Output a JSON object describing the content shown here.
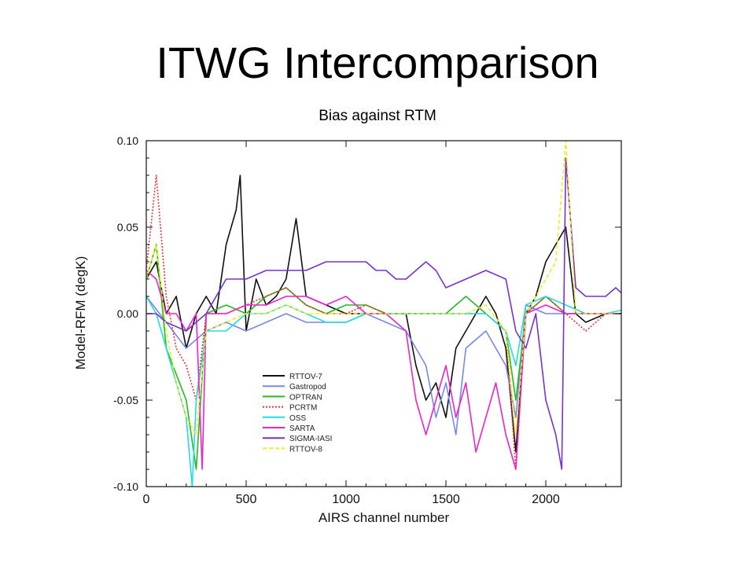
{
  "slide": {
    "title": "ITWG Intercomparison",
    "subtitle": "Bias against RTM"
  },
  "chart_data": {
    "type": "line",
    "xlabel": "AIRS channel number",
    "ylabel": "Model-RFM (degK)",
    "xlim": [
      0,
      2378
    ],
    "ylim": [
      -0.1,
      0.1
    ],
    "x_ticks": [
      0,
      500,
      1000,
      1500,
      2000
    ],
    "x_tick_labels": [
      "0",
      "500",
      "1000",
      "1500",
      "2000"
    ],
    "y_ticks": [
      0.1,
      0.05,
      0.0,
      -0.05,
      -0.1
    ],
    "y_tick_labels": [
      "0.10",
      "0.05",
      "0.00",
      "-0.05",
      "-0.10"
    ],
    "legend_position": "lower-left",
    "series": [
      {
        "name": "RTTOV-7",
        "color": "#111111",
        "dash": "solid",
        "points": [
          [
            0,
            0.02
          ],
          [
            50,
            0.03
          ],
          [
            100,
            0.0
          ],
          [
            150,
            0.01
          ],
          [
            200,
            -0.02
          ],
          [
            250,
            0.0
          ],
          [
            300,
            0.01
          ],
          [
            350,
            0.0
          ],
          [
            400,
            0.04
          ],
          [
            450,
            0.06
          ],
          [
            470,
            0.08
          ],
          [
            500,
            -0.01
          ],
          [
            550,
            0.02
          ],
          [
            600,
            0.005
          ],
          [
            650,
            0.01
          ],
          [
            700,
            0.02
          ],
          [
            750,
            0.055
          ],
          [
            800,
            0.01
          ],
          [
            900,
            0.005
          ],
          [
            1000,
            0.0
          ],
          [
            1100,
            0.0
          ],
          [
            1200,
            0.0
          ],
          [
            1300,
            0.0
          ],
          [
            1350,
            -0.03
          ],
          [
            1400,
            -0.05
          ],
          [
            1450,
            -0.04
          ],
          [
            1500,
            -0.06
          ],
          [
            1550,
            -0.02
          ],
          [
            1600,
            -0.01
          ],
          [
            1700,
            0.01
          ],
          [
            1750,
            0.0
          ],
          [
            1800,
            -0.02
          ],
          [
            1850,
            -0.08
          ],
          [
            1900,
            0.0
          ],
          [
            1950,
            0.01
          ],
          [
            2000,
            0.03
          ],
          [
            2050,
            0.04
          ],
          [
            2100,
            0.05
          ],
          [
            2150,
            0.0
          ],
          [
            2200,
            -0.005
          ],
          [
            2300,
            0.0
          ],
          [
            2378,
            0.0
          ]
        ]
      },
      {
        "name": "Gastropod",
        "color": "#7788ee",
        "dash": "solid",
        "points": [
          [
            0,
            0.01
          ],
          [
            100,
            -0.005
          ],
          [
            200,
            -0.02
          ],
          [
            300,
            -0.01
          ],
          [
            400,
            -0.005
          ],
          [
            500,
            -0.01
          ],
          [
            600,
            -0.005
          ],
          [
            700,
            0.0
          ],
          [
            800,
            -0.005
          ],
          [
            900,
            -0.005
          ],
          [
            1000,
            -0.005
          ],
          [
            1100,
            0.0
          ],
          [
            1200,
            -0.005
          ],
          [
            1300,
            -0.01
          ],
          [
            1400,
            -0.03
          ],
          [
            1450,
            -0.06
          ],
          [
            1500,
            -0.04
          ],
          [
            1550,
            -0.07
          ],
          [
            1600,
            -0.02
          ],
          [
            1700,
            -0.01
          ],
          [
            1800,
            -0.03
          ],
          [
            1850,
            -0.06
          ],
          [
            1900,
            0.005
          ],
          [
            2000,
            0.0
          ],
          [
            2100,
            0.0
          ],
          [
            2200,
            0.0
          ],
          [
            2300,
            0.0
          ],
          [
            2378,
            0.0
          ]
        ]
      },
      {
        "name": "OPTRAN",
        "color": "#22bb22",
        "dash": "solid",
        "points": [
          [
            0,
            0.02
          ],
          [
            50,
            0.04
          ],
          [
            100,
            -0.02
          ],
          [
            200,
            -0.05
          ],
          [
            250,
            -0.09
          ],
          [
            300,
            0.0
          ],
          [
            400,
            0.005
          ],
          [
            500,
            0.0
          ],
          [
            600,
            0.01
          ],
          [
            700,
            0.015
          ],
          [
            800,
            0.005
          ],
          [
            900,
            0.0
          ],
          [
            1000,
            0.005
          ],
          [
            1100,
            0.005
          ],
          [
            1200,
            0.0
          ],
          [
            1300,
            0.0
          ],
          [
            1400,
            0.0
          ],
          [
            1500,
            0.0
          ],
          [
            1600,
            0.01
          ],
          [
            1700,
            0.0
          ],
          [
            1800,
            -0.01
          ],
          [
            1850,
            -0.05
          ],
          [
            1900,
            0.0
          ],
          [
            2000,
            0.01
          ],
          [
            2100,
            0.0
          ],
          [
            2200,
            0.0
          ],
          [
            2300,
            0.0
          ],
          [
            2378,
            0.0
          ]
        ]
      },
      {
        "name": "PCRTM",
        "color": "#ee3333",
        "dash": "dotted",
        "points": [
          [
            0,
            0.025
          ],
          [
            50,
            0.08
          ],
          [
            100,
            0.01
          ],
          [
            150,
            -0.02
          ],
          [
            200,
            -0.03
          ],
          [
            250,
            -0.05
          ],
          [
            300,
            0.0
          ],
          [
            400,
            0.0
          ],
          [
            500,
            0.005
          ],
          [
            600,
            0.01
          ],
          [
            700,
            0.015
          ],
          [
            800,
            0.005
          ],
          [
            900,
            0.0
          ],
          [
            1000,
            0.0
          ],
          [
            1100,
            0.005
          ],
          [
            1200,
            0.0
          ],
          [
            1300,
            0.0
          ],
          [
            1400,
            0.0
          ],
          [
            1500,
            0.0
          ],
          [
            1600,
            0.0
          ],
          [
            1700,
            0.0
          ],
          [
            1800,
            -0.01
          ],
          [
            1850,
            -0.09
          ],
          [
            1900,
            0.0
          ],
          [
            2000,
            0.01
          ],
          [
            2100,
            0.0
          ],
          [
            2200,
            -0.01
          ],
          [
            2300,
            0.0
          ],
          [
            2378,
            0.0
          ]
        ]
      },
      {
        "name": "OSS",
        "color": "#22dddd",
        "dash": "solid",
        "points": [
          [
            0,
            0.01
          ],
          [
            50,
            0.0
          ],
          [
            100,
            -0.02
          ],
          [
            150,
            -0.04
          ],
          [
            200,
            -0.06
          ],
          [
            230,
            -0.1
          ],
          [
            250,
            -0.05
          ],
          [
            300,
            -0.01
          ],
          [
            400,
            -0.01
          ],
          [
            500,
            0.0
          ],
          [
            600,
            0.0
          ],
          [
            700,
            0.005
          ],
          [
            800,
            0.0
          ],
          [
            900,
            -0.005
          ],
          [
            1000,
            -0.005
          ],
          [
            1100,
            0.0
          ],
          [
            1200,
            0.0
          ],
          [
            1300,
            0.0
          ],
          [
            1400,
            0.0
          ],
          [
            1500,
            0.0
          ],
          [
            1600,
            0.0
          ],
          [
            1700,
            0.0
          ],
          [
            1800,
            -0.01
          ],
          [
            1850,
            -0.03
          ],
          [
            1900,
            0.005
          ],
          [
            2000,
            0.01
          ],
          [
            2100,
            0.005
          ],
          [
            2200,
            0.0
          ],
          [
            2300,
            0.0
          ],
          [
            2378,
            0.002
          ]
        ]
      },
      {
        "name": "SARTA",
        "color": "#ee22cc",
        "dash": "solid",
        "points": [
          [
            0,
            0.025
          ],
          [
            50,
            0.02
          ],
          [
            100,
            0.0
          ],
          [
            150,
            0.0
          ],
          [
            200,
            -0.01
          ],
          [
            250,
            0.0
          ],
          [
            280,
            -0.09
          ],
          [
            300,
            0.0
          ],
          [
            400,
            0.0
          ],
          [
            500,
            0.005
          ],
          [
            600,
            0.005
          ],
          [
            700,
            0.01
          ],
          [
            800,
            0.01
          ],
          [
            900,
            0.005
          ],
          [
            1000,
            0.01
          ],
          [
            1100,
            0.0
          ],
          [
            1200,
            0.0
          ],
          [
            1300,
            -0.01
          ],
          [
            1350,
            -0.05
          ],
          [
            1400,
            -0.07
          ],
          [
            1450,
            -0.05
          ],
          [
            1500,
            -0.03
          ],
          [
            1550,
            -0.06
          ],
          [
            1600,
            -0.04
          ],
          [
            1650,
            -0.08
          ],
          [
            1700,
            -0.06
          ],
          [
            1750,
            -0.04
          ],
          [
            1800,
            -0.07
          ],
          [
            1850,
            -0.09
          ],
          [
            1900,
            0.0
          ],
          [
            2000,
            0.005
          ],
          [
            2100,
            0.0
          ],
          [
            2200,
            0.0
          ],
          [
            2300,
            0.0
          ],
          [
            2378,
            0.0
          ]
        ]
      },
      {
        "name": "SIGMA-IASI",
        "color": "#7733cc",
        "dash": "solid",
        "points": [
          [
            0,
            0.0
          ],
          [
            50,
            0.0
          ],
          [
            100,
            -0.005
          ],
          [
            200,
            -0.01
          ],
          [
            300,
            0.0
          ],
          [
            400,
            0.02
          ],
          [
            500,
            0.02
          ],
          [
            600,
            0.025
          ],
          [
            700,
            0.025
          ],
          [
            800,
            0.025
          ],
          [
            900,
            0.03
          ],
          [
            1000,
            0.03
          ],
          [
            1100,
            0.03
          ],
          [
            1150,
            0.025
          ],
          [
            1200,
            0.025
          ],
          [
            1250,
            0.02
          ],
          [
            1300,
            0.02
          ],
          [
            1350,
            0.025
          ],
          [
            1400,
            0.03
          ],
          [
            1450,
            0.025
          ],
          [
            1500,
            0.015
          ],
          [
            1600,
            0.02
          ],
          [
            1700,
            0.025
          ],
          [
            1800,
            0.02
          ],
          [
            1850,
            -0.01
          ],
          [
            1900,
            -0.02
          ],
          [
            1950,
            0.0
          ],
          [
            2000,
            -0.05
          ],
          [
            2050,
            -0.07
          ],
          [
            2080,
            -0.09
          ],
          [
            2100,
            0.09
          ],
          [
            2150,
            0.015
          ],
          [
            2200,
            0.01
          ],
          [
            2250,
            0.01
          ],
          [
            2300,
            0.01
          ],
          [
            2350,
            0.015
          ],
          [
            2378,
            0.012
          ]
        ]
      },
      {
        "name": "RTTOV-8",
        "color": "#eeee22",
        "dash": "dashed",
        "points": [
          [
            0,
            0.02
          ],
          [
            50,
            0.04
          ],
          [
            100,
            -0.01
          ],
          [
            150,
            -0.04
          ],
          [
            200,
            -0.06
          ],
          [
            250,
            -0.07
          ],
          [
            300,
            -0.01
          ],
          [
            400,
            -0.005
          ],
          [
            500,
            0.0
          ],
          [
            600,
            0.0
          ],
          [
            700,
            0.005
          ],
          [
            800,
            0.0
          ],
          [
            900,
            0.0
          ],
          [
            1000,
            0.0
          ],
          [
            1100,
            0.0
          ],
          [
            1200,
            0.0
          ],
          [
            1300,
            0.0
          ],
          [
            1400,
            0.0
          ],
          [
            1500,
            0.0
          ],
          [
            1600,
            0.0
          ],
          [
            1700,
            0.005
          ],
          [
            1800,
            -0.01
          ],
          [
            1850,
            -0.07
          ],
          [
            1900,
            0.0
          ],
          [
            2000,
            0.02
          ],
          [
            2050,
            0.03
          ],
          [
            2100,
            0.1
          ],
          [
            2150,
            0.0
          ],
          [
            2200,
            0.0
          ],
          [
            2300,
            0.0
          ],
          [
            2378,
            0.0
          ]
        ]
      }
    ]
  }
}
